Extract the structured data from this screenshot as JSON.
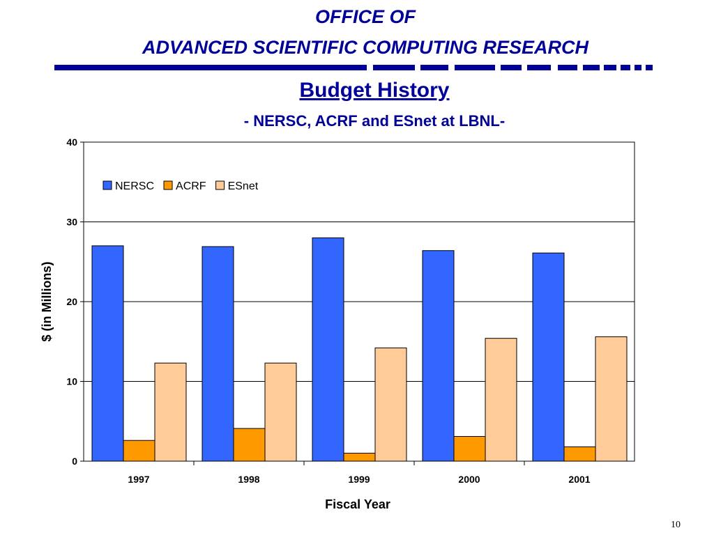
{
  "header": {
    "line1": "OFFICE OF",
    "line2": "ADVANCED SCIENTIFIC COMPUTING RESEARCH"
  },
  "slide": {
    "title": "Budget History",
    "subtitle": "- NERSC, ACRF and ESnet at LBNL-",
    "page_number": "10"
  },
  "colors": {
    "header_text": "#000099",
    "nersc": "#3366FF",
    "acrf": "#FF9900",
    "esnet": "#FFCC99"
  },
  "chart_data": {
    "type": "bar",
    "categories": [
      "1997",
      "1998",
      "1999",
      "2000",
      "2001"
    ],
    "series": [
      {
        "name": "NERSC",
        "values": [
          27.0,
          26.9,
          28.0,
          26.4,
          26.1
        ],
        "color": "#3366FF"
      },
      {
        "name": "ACRF",
        "values": [
          2.6,
          4.1,
          1.0,
          3.1,
          1.8
        ],
        "color": "#FF9900"
      },
      {
        "name": "ESnet",
        "values": [
          12.3,
          12.3,
          14.2,
          15.4,
          15.6
        ],
        "color": "#FFCC99"
      }
    ],
    "xlabel": "Fiscal Year",
    "ylabel": "$ (in Millions)",
    "ylim": [
      0,
      40
    ],
    "yticks": [
      "0",
      "10",
      "20",
      "30",
      "40"
    ],
    "grid": true,
    "legend": "top-left"
  }
}
